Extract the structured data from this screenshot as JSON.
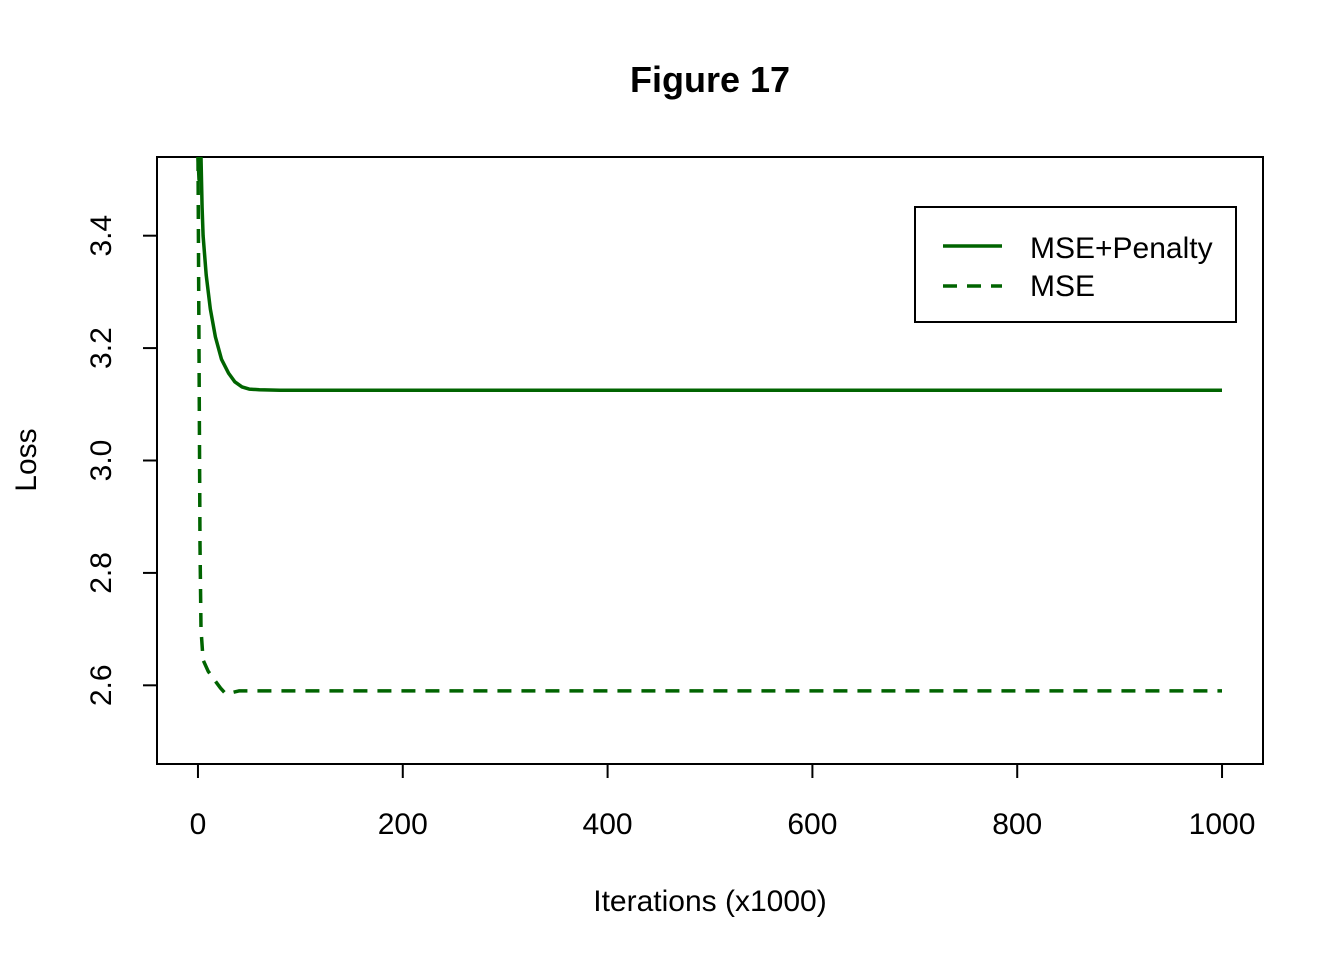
{
  "chart_data": {
    "type": "line",
    "title": "Figure 17",
    "xlabel": "Iterations (x1000)",
    "ylabel": "Loss",
    "xlim": [
      -40,
      1040
    ],
    "ylim": [
      2.46,
      3.54
    ],
    "x_ticks": [
      0,
      200,
      400,
      600,
      800,
      1000
    ],
    "y_ticks": [
      2.6,
      2.8,
      3.0,
      3.2,
      3.4
    ],
    "y_tick_labels": [
      "2.6",
      "2.8",
      "3.0",
      "3.2",
      "3.4"
    ],
    "grid": false,
    "legend_position": "top-right",
    "color": "#006400",
    "series": [
      {
        "name": "MSE+Penalty",
        "style": "solid",
        "points": [
          [
            0,
            3.54
          ],
          [
            1,
            3.5
          ],
          [
            2,
            3.53
          ],
          [
            3,
            3.54
          ],
          [
            4,
            3.45
          ],
          [
            5,
            3.4
          ],
          [
            8,
            3.33
          ],
          [
            12,
            3.27
          ],
          [
            17,
            3.22
          ],
          [
            23,
            3.18
          ],
          [
            30,
            3.155
          ],
          [
            36,
            3.14
          ],
          [
            43,
            3.131
          ],
          [
            50,
            3.127
          ],
          [
            60,
            3.126
          ],
          [
            80,
            3.125
          ],
          [
            150,
            3.125
          ],
          [
            300,
            3.125
          ],
          [
            500,
            3.125
          ],
          [
            700,
            3.125
          ],
          [
            900,
            3.125
          ],
          [
            1000,
            3.125
          ]
        ]
      },
      {
        "name": "MSE",
        "style": "dashed",
        "points": [
          [
            0,
            3.54
          ],
          [
            1,
            3.2
          ],
          [
            2,
            2.85
          ],
          [
            3,
            2.7
          ],
          [
            5,
            2.645
          ],
          [
            10,
            2.625
          ],
          [
            16,
            2.61
          ],
          [
            22,
            2.595
          ],
          [
            27,
            2.585
          ],
          [
            33,
            2.587
          ],
          [
            40,
            2.59
          ],
          [
            100,
            2.59
          ],
          [
            300,
            2.59
          ],
          [
            500,
            2.59
          ],
          [
            700,
            2.59
          ],
          [
            900,
            2.59
          ],
          [
            1000,
            2.59
          ]
        ]
      }
    ]
  }
}
